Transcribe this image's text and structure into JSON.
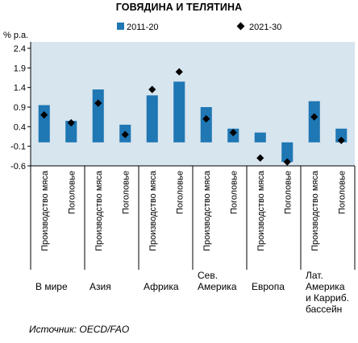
{
  "chart_data": {
    "type": "bar",
    "title": "ГОВЯДИНА И ТЕЛЯТИНА",
    "ylabel": "% р.а.",
    "ylim": [
      -0.6,
      2.4
    ],
    "yticks": [
      2.4,
      1.9,
      1.4,
      0.9,
      0.4,
      -0.1,
      -0.6
    ],
    "grid": false,
    "legend_position": "top",
    "categories": [
      "Производство мяса",
      "Поголовье",
      "Производство мяса",
      "Поголовье",
      "Производство мяса",
      "Поголовье",
      "Производство мяса",
      "Поголовье",
      "Производство мяса",
      "Поголовье",
      "Производство мяса",
      "Поголовье"
    ],
    "groups": [
      {
        "lines": [
          "В мире"
        ]
      },
      {
        "lines": [
          "Азия"
        ]
      },
      {
        "lines": [
          "Африка"
        ]
      },
      {
        "lines": [
          "Сев.",
          "Америка"
        ]
      },
      {
        "lines": [
          "Европа"
        ]
      },
      {
        "lines": [
          "Лат.",
          "Америка",
          "и Карриб.",
          "бассейн"
        ]
      }
    ],
    "series": [
      {
        "name": "2011-20",
        "kind": "bar",
        "color": "#1f77b4",
        "values": [
          0.95,
          0.55,
          1.35,
          0.45,
          1.2,
          1.55,
          0.9,
          0.35,
          0.25,
          -0.5,
          1.05,
          0.35
        ]
      },
      {
        "name": "2021-30",
        "kind": "marker",
        "color": "#000000",
        "values": [
          0.7,
          0.5,
          1.0,
          0.2,
          1.35,
          1.8,
          0.6,
          0.25,
          -0.4,
          -0.5,
          0.65,
          0.05
        ]
      }
    ]
  },
  "source": "Источник: OECD/FAO"
}
